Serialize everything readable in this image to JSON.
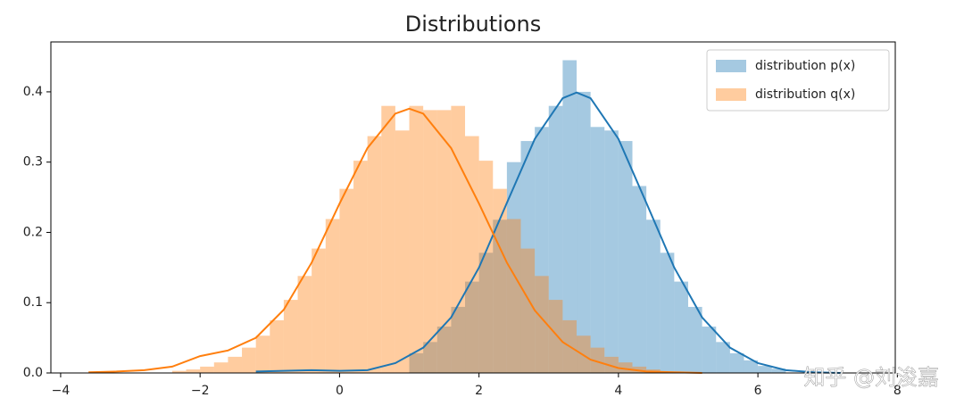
{
  "chart_data": {
    "type": "histogram",
    "title": "Distributions",
    "xlim": [
      -4.14,
      7.97
    ],
    "ylim": [
      0,
      0.471
    ],
    "xticks": [
      {
        "value": -4,
        "label": "−4"
      },
      {
        "value": -2,
        "label": "−2"
      },
      0,
      2,
      4,
      6,
      8
    ],
    "yticks": [
      {
        "value": 0,
        "label": "0.0"
      },
      0.1,
      0.2,
      0.3,
      0.4
    ],
    "legend": "upper right",
    "watermark": "知乎 @刘浚嘉",
    "series": [
      {
        "name": "distribution p(x)",
        "color": "#1f77b4",
        "bins": [
          1.0,
          1.2,
          1.4,
          1.6,
          1.8,
          2.0,
          2.2,
          2.4,
          2.6,
          2.8,
          3.0,
          3.2,
          3.4,
          3.6,
          3.8,
          4.0,
          4.2,
          4.4,
          4.6,
          4.8,
          5.0,
          5.2,
          5.4,
          5.6,
          5.8,
          6.0,
          6.2,
          6.4
        ],
        "values": [
          0.028,
          0.044,
          0.066,
          0.094,
          0.13,
          0.171,
          0.218,
          0.3,
          0.33,
          0.35,
          0.38,
          0.445,
          0.4,
          0.35,
          0.345,
          0.33,
          0.266,
          0.218,
          0.171,
          0.13,
          0.094,
          0.066,
          0.044,
          0.028,
          0.018,
          0.01,
          0.006
        ],
        "kde": {
          "x": [
            -1.2,
            -0.8,
            -0.4,
            0,
            0.4,
            0.8,
            1.2,
            1.6,
            2.0,
            2.4,
            2.8,
            3.2,
            3.4,
            3.6,
            4.0,
            4.4,
            4.8,
            5.2,
            5.6,
            6.0,
            6.4,
            6.8,
            7.2
          ],
          "y": [
            0.002,
            0.003,
            0.004,
            0.003,
            0.004,
            0.014,
            0.036,
            0.079,
            0.15,
            0.242,
            0.333,
            0.391,
            0.399,
            0.391,
            0.333,
            0.242,
            0.15,
            0.079,
            0.036,
            0.014,
            0.004,
            0.001,
            0
          ]
        }
      },
      {
        "name": "distribution q(x)",
        "color": "#ff7f0e",
        "bins": [
          -2.4,
          -2.2,
          -2.0,
          -1.8,
          -1.6,
          -1.4,
          -1.2,
          -1.0,
          -0.8,
          -0.6,
          -0.4,
          -0.2,
          0,
          0.2,
          0.4,
          0.6,
          0.8,
          1.0,
          1.2,
          1.4,
          1.6,
          1.8,
          2.0,
          2.2,
          2.4,
          2.6,
          2.8,
          3.0,
          3.2,
          3.4,
          3.6,
          3.8,
          4.0,
          4.2,
          4.4,
          4.6
        ],
        "values": [
          0.003,
          0.005,
          0.009,
          0.015,
          0.023,
          0.036,
          0.053,
          0.075,
          0.104,
          0.138,
          0.177,
          0.219,
          0.262,
          0.302,
          0.337,
          0.38,
          0.345,
          0.38,
          0.374,
          0.374,
          0.38,
          0.337,
          0.302,
          0.262,
          0.219,
          0.177,
          0.138,
          0.104,
          0.075,
          0.053,
          0.036,
          0.023,
          0.015,
          0.009,
          0.005
        ],
        "kde": {
          "x": [
            -3.6,
            -3.2,
            -2.8,
            -2.4,
            -2.0,
            -1.6,
            -1.2,
            -0.8,
            -0.4,
            0,
            0.4,
            0.8,
            1.0,
            1.2,
            1.6,
            2.0,
            2.4,
            2.8,
            3.2,
            3.6,
            4.0,
            4.4,
            4.8,
            5.2
          ],
          "y": [
            0.001,
            0.002,
            0.004,
            0.009,
            0.024,
            0.032,
            0.05,
            0.09,
            0.157,
            0.241,
            0.32,
            0.369,
            0.376,
            0.369,
            0.32,
            0.241,
            0.157,
            0.089,
            0.044,
            0.019,
            0.007,
            0.002,
            0.001,
            0
          ]
        }
      }
    ]
  }
}
